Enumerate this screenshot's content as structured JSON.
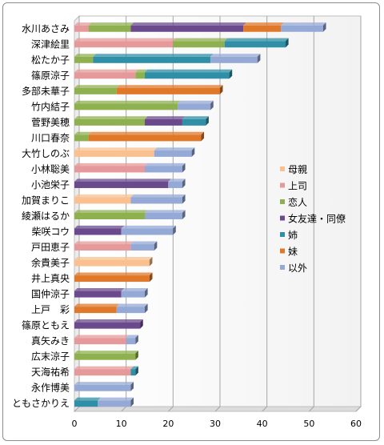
{
  "chart_data": {
    "type": "bar",
    "orientation": "horizontal",
    "stacked": true,
    "three_d": true,
    "legend_position": "right",
    "grid": true,
    "xlim": [
      0,
      60
    ],
    "xticks": [
      "0",
      "10",
      "20",
      "30",
      "40",
      "50",
      "60"
    ],
    "categories": [
      "水川あさみ",
      "深津絵里",
      "松たか子",
      "篠原涼子",
      "多部未華子",
      "竹内結子",
      "菅野美穂",
      "川口春奈",
      "大竹しのぶ",
      "小林聡美",
      "小池栄子",
      "加賀まりこ",
      "綾瀬はるか",
      "柴咲コウ",
      "戸田恵子",
      "余貴美子",
      "井上真央",
      "国仲涼子",
      "上戸　彩",
      "篠原ともえ",
      "真矢みき",
      "広末涼子",
      "天海祐希",
      "永作博美",
      "ともさかりえ"
    ],
    "series": [
      {
        "name": "母親",
        "color": "#fac090",
        "values": [
          0,
          0,
          0,
          0,
          0,
          0,
          0,
          0,
          17,
          0,
          0,
          12,
          0,
          0,
          0,
          16,
          0,
          0,
          0,
          0,
          0,
          0,
          0,
          0,
          0
        ]
      },
      {
        "name": "上司",
        "color": "#e6999a",
        "values": [
          3,
          21,
          0,
          13,
          0,
          0,
          0,
          0,
          0,
          15,
          0,
          0,
          0,
          0,
          12,
          0,
          0,
          0,
          0,
          0,
          11,
          0,
          12,
          0,
          0
        ]
      },
      {
        "name": "恋人",
        "color": "#8fb04f",
        "values": [
          9,
          11,
          4,
          2,
          9,
          22,
          15,
          3,
          0,
          0,
          0,
          0,
          15,
          0,
          0,
          0,
          0,
          0,
          0,
          0,
          0,
          13,
          0,
          0,
          0
        ]
      },
      {
        "name": "女友達・同僚",
        "color": "#6a4a8c",
        "values": [
          24,
          0,
          0,
          0,
          0,
          0,
          8,
          0,
          0,
          0,
          20,
          0,
          0,
          10,
          0,
          0,
          0,
          10,
          0,
          14,
          0,
          0,
          0,
          0,
          0
        ]
      },
      {
        "name": "姉",
        "color": "#2e8fa6",
        "values": [
          0,
          13,
          25,
          18,
          0,
          0,
          5,
          0,
          0,
          0,
          0,
          0,
          0,
          0,
          0,
          0,
          0,
          0,
          0,
          0,
          0,
          0,
          1,
          0,
          5
        ]
      },
      {
        "name": "妹",
        "color": "#e0782a",
        "values": [
          8,
          0,
          0,
          0,
          22,
          0,
          0,
          24,
          0,
          0,
          0,
          0,
          0,
          0,
          0,
          0,
          16,
          0,
          9,
          0,
          0,
          0,
          0,
          0,
          0
        ]
      },
      {
        "name": "以外",
        "color": "#95a9d6",
        "values": [
          9,
          0,
          10,
          0,
          0,
          7,
          0,
          0,
          8,
          8,
          3,
          11,
          8,
          11,
          5,
          0,
          0,
          5,
          6,
          0,
          2,
          0,
          0,
          12,
          7
        ]
      }
    ]
  }
}
